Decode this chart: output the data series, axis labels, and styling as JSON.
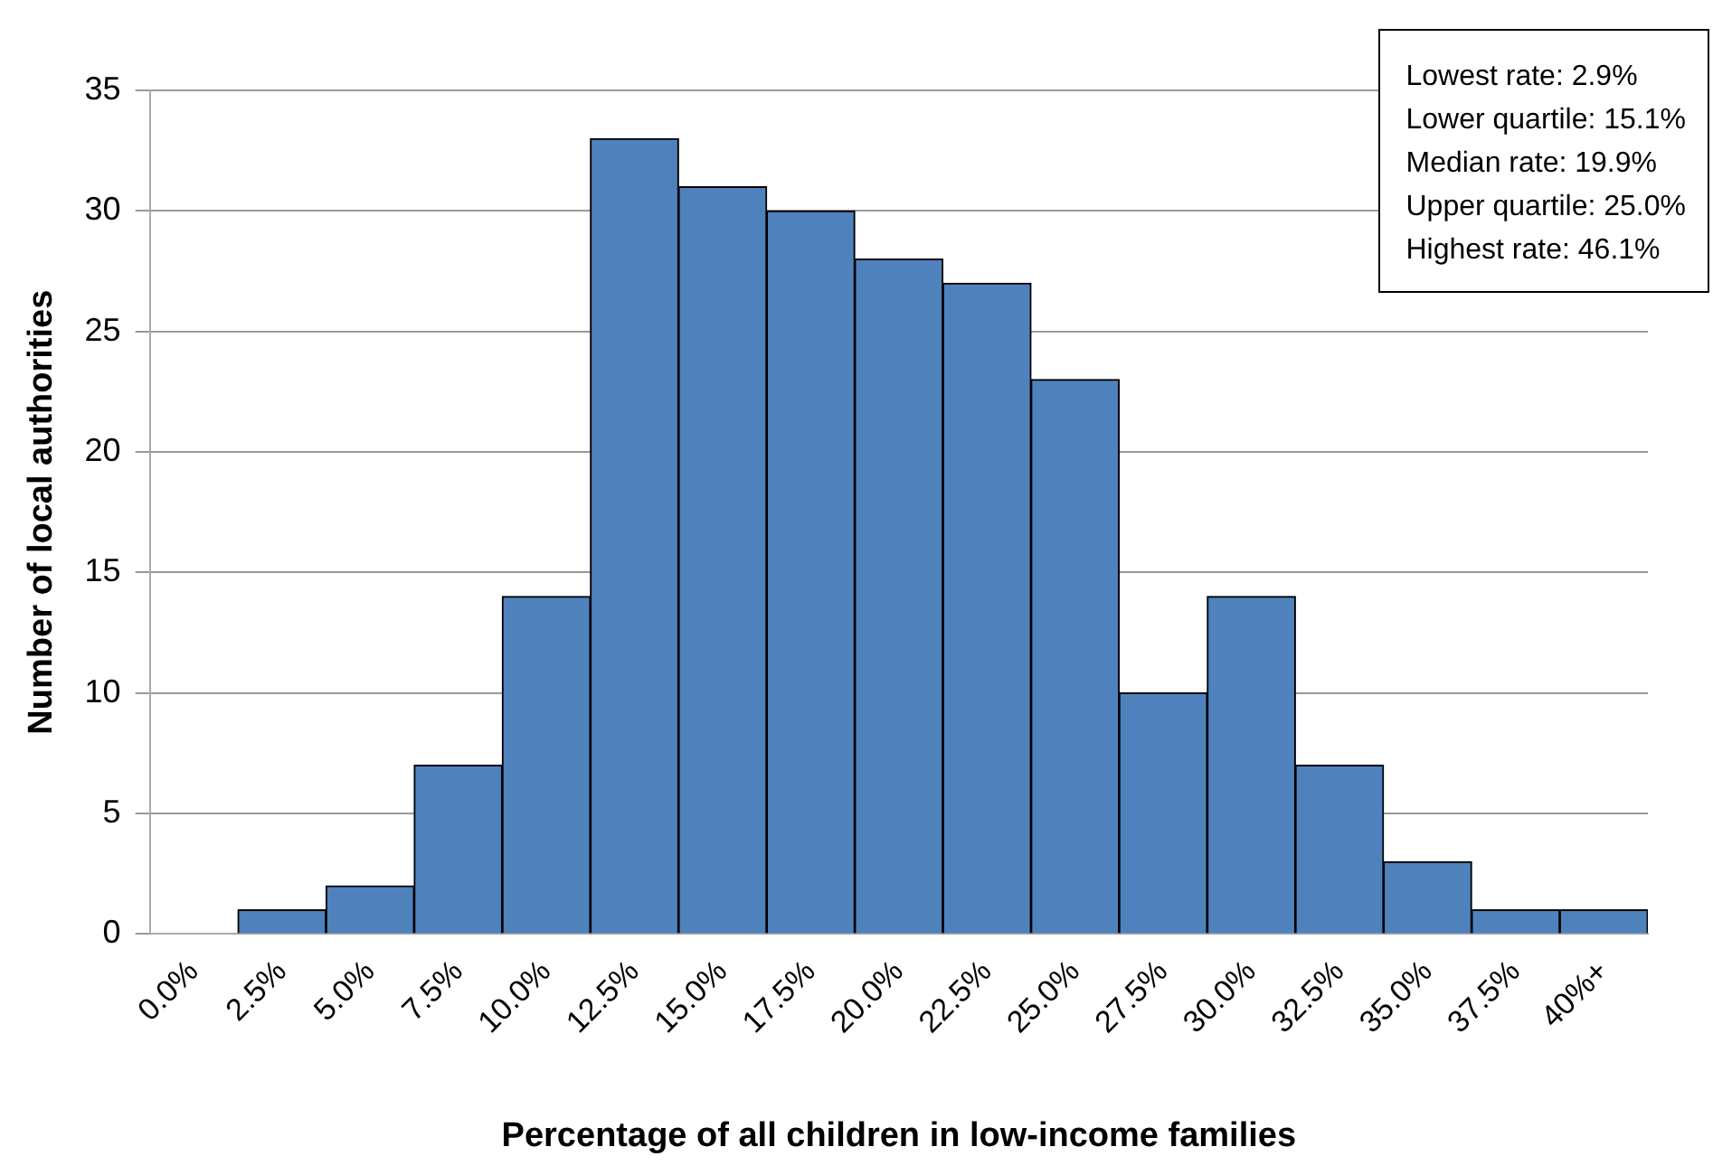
{
  "chart_data": {
    "type": "bar",
    "xlabel": "Percentage of all children in low-income families",
    "ylabel": "Number of local authorities",
    "categories": [
      "0.0%",
      "2.5%",
      "5.0%",
      "7.5%",
      "10.0%",
      "12.5%",
      "15.0%",
      "17.5%",
      "20.0%",
      "22.5%",
      "25.0%",
      "27.5%",
      "30.0%",
      "32.5%",
      "35.0%",
      "37.5%",
      "40%+"
    ],
    "values": [
      0,
      1,
      2,
      7,
      14,
      33,
      31,
      30,
      28,
      27,
      23,
      10,
      14,
      7,
      3,
      1,
      1
    ],
    "color": "#4f81bd",
    "ylim": [
      0,
      35
    ],
    "yticks": [
      0,
      5,
      10,
      15,
      20,
      25,
      30,
      35
    ],
    "grid": "y",
    "legend": false,
    "annotations": [
      "Lowest rate: 2.9%",
      "Lower quartile: 15.1%",
      "Median rate: 19.9%",
      "Upper quartile: 25.0%",
      "Highest rate: 46.1%"
    ]
  }
}
